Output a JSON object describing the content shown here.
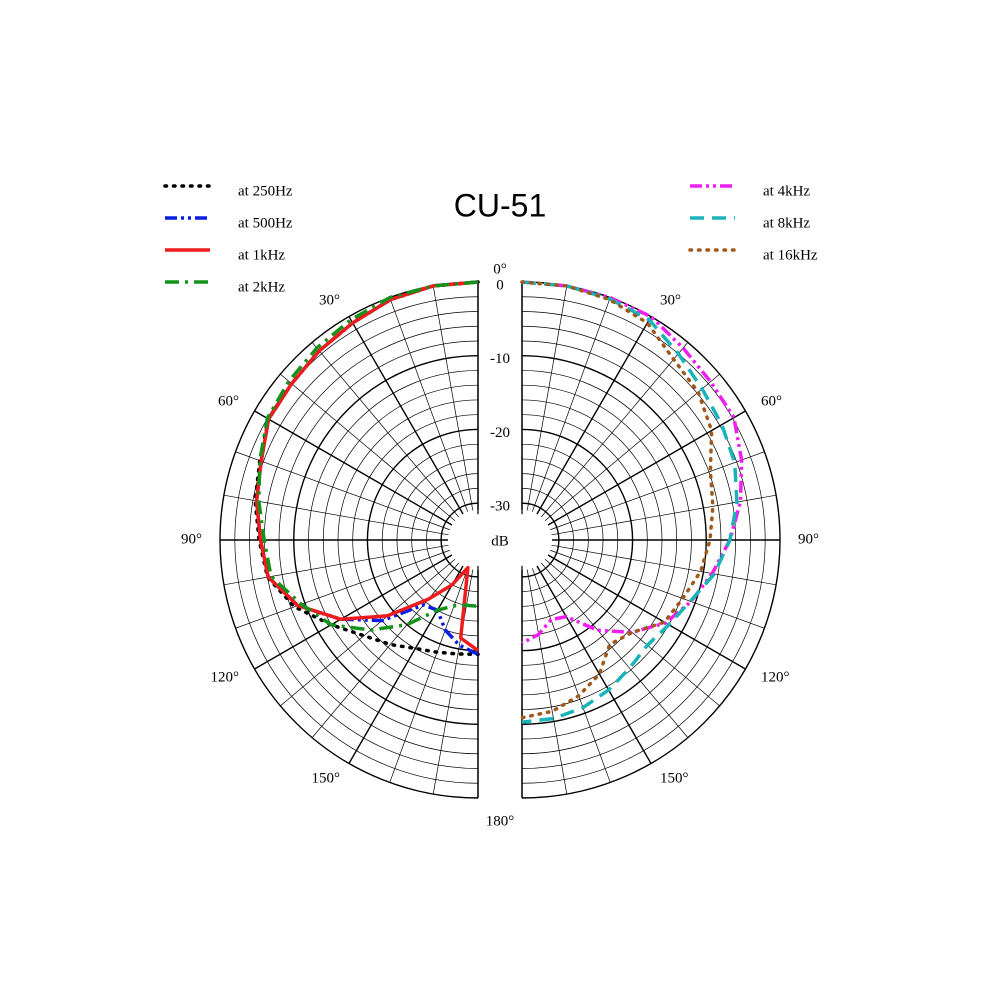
{
  "chart_data": {
    "type": "polar",
    "title": "CU-51",
    "r_label": "dB",
    "rlim": [
      -35,
      0
    ],
    "rticks": [
      0,
      -10,
      -20,
      -30
    ],
    "theta": [
      0,
      10,
      20,
      30,
      40,
      50,
      60,
      70,
      80,
      90,
      100,
      110,
      120,
      130,
      140,
      150,
      160,
      170,
      180
    ],
    "thetaticks": [
      {
        "value": 0,
        "label": "0°"
      },
      {
        "value": 30,
        "label": "30°"
      },
      {
        "value": 60,
        "label": "60°"
      },
      {
        "value": 90,
        "label": "90°"
      },
      {
        "value": 120,
        "label": "120°"
      },
      {
        "value": 150,
        "label": "150°"
      },
      {
        "value": 180,
        "label": "180°"
      }
    ],
    "grid": true,
    "series": [
      {
        "name": "at 250Hz",
        "color": "#000000",
        "style": "dotted",
        "side": "left",
        "values": [
          0,
          0,
          -0.3,
          -1,
          -1.5,
          -2,
          -2.2,
          -3.5,
          -4.3,
          -5.3,
          -6,
          -8.5,
          -12,
          -14.8,
          -16.5,
          -18,
          -18.8,
          -19.3,
          -19.5
        ]
      },
      {
        "name": "at 500Hz",
        "color": "#0a1ee6",
        "style": "dash-dot-dot",
        "side": "left",
        "values": [
          0,
          0,
          -0.3,
          -1,
          -1.5,
          -2,
          -2.2,
          -3.7,
          -4.5,
          -5.5,
          -6.1,
          -9,
          -13.5,
          -18,
          -23.5,
          -24,
          -22,
          -20.5,
          -19.5
        ]
      },
      {
        "name": "at 1kHz",
        "color": "#ee1c1c",
        "style": "solid",
        "side": "left",
        "values": [
          0,
          0,
          -0.3,
          -1,
          -1.5,
          -2,
          -2.2,
          -3.7,
          -4.5,
          -5.5,
          -6.1,
          -9,
          -13.5,
          -19,
          -24.5,
          -28,
          -31,
          -21.5,
          -20
        ]
      },
      {
        "name": "at 2kHz",
        "color": "#13931a",
        "style": "dash-dot",
        "side": "left",
        "values": [
          0,
          0,
          0,
          -0.5,
          -1,
          -1.5,
          -2,
          -3.5,
          -4.8,
          -6,
          -6.5,
          -9.5,
          -12,
          -16,
          -20,
          -24,
          -25.5,
          -26,
          -26
        ]
      },
      {
        "name": "at 4kHz",
        "color": "#f01ef0",
        "style": "dash-dot-dot",
        "side": "right",
        "values": [
          0,
          0,
          0,
          0,
          -1,
          -1.6,
          -1.8,
          -3.3,
          -4.9,
          -6.8,
          -8.8,
          -10.6,
          -12.5,
          -15.5,
          -19,
          -23,
          -23.5,
          -22,
          -21
        ]
      },
      {
        "name": "at 8kHz",
        "color": "#19b4b9",
        "style": "dashed",
        "side": "right",
        "values": [
          0,
          0,
          -0.2,
          -0.5,
          -2,
          -3.1,
          -3.7,
          -4.3,
          -5.4,
          -6.8,
          -8.5,
          -10.7,
          -12,
          -12.8,
          -12.3,
          -11.5,
          -10.8,
          -10.4,
          -10.3
        ]
      },
      {
        "name": "at 16kHz",
        "color": "#a0591b",
        "style": "dotted",
        "side": "right",
        "values": [
          0,
          0,
          -0.3,
          -1,
          -3,
          -3.8,
          -5.3,
          -7.8,
          -8.7,
          -9.5,
          -10.4,
          -11.8,
          -12.7,
          -15.5,
          -16.5,
          -14,
          -12.5,
          -11.4,
          -10.9
        ]
      }
    ]
  }
}
